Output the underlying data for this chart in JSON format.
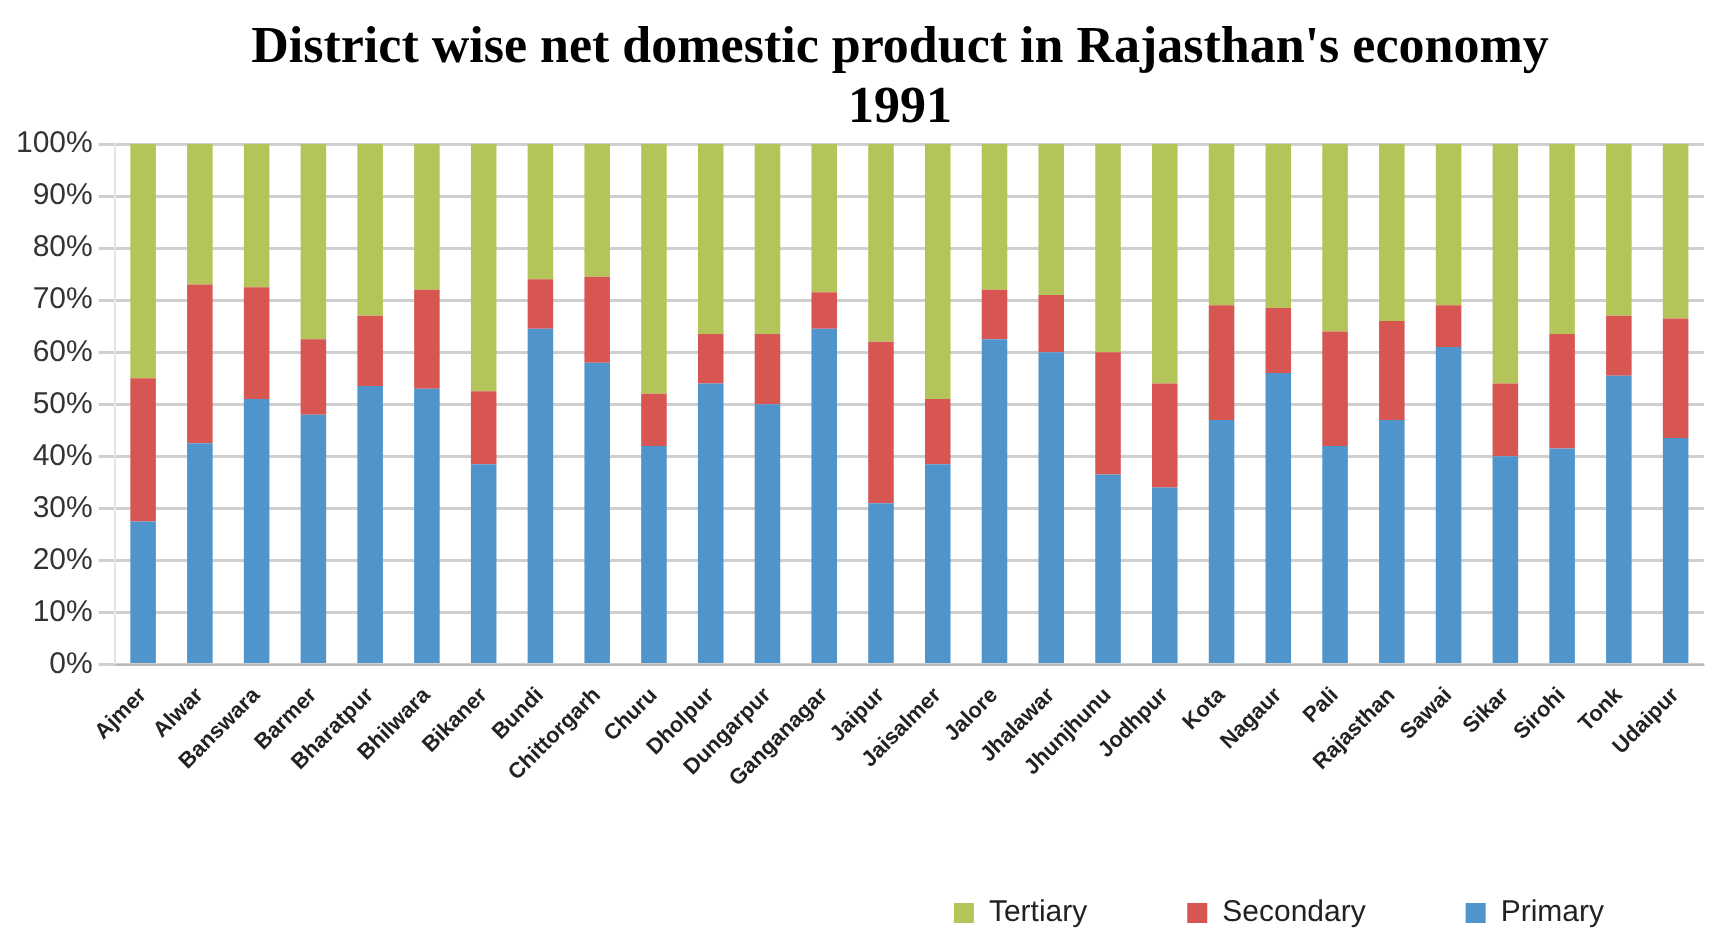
{
  "chart_data": {
    "type": "bar",
    "title": "District wise net domestic product in Rajasthan's economy 1991",
    "stacked": true,
    "categories": [
      "Ajmer",
      "Alwar",
      "Banswara",
      "Barmer",
      "Bharatpur",
      "Bhilwara",
      "Bikaner",
      "Bundi",
      "Chittorgarh",
      "Churu",
      "Dholpur",
      "Dungarpur",
      "Ganganagar",
      "Jaipur",
      "Jaisalmer",
      "Jalore",
      "Jhalawar",
      "Jhunjhunu",
      "Jodhpur",
      "Kota",
      "Nagaur",
      "Pali",
      "Rajasthan",
      "Sawai",
      "Sikar",
      "Sirohi",
      "Tonk",
      "Udaipur"
    ],
    "series": [
      {
        "name": "Primary",
        "color": "#4f94cb",
        "values": [
          27.5,
          42.5,
          51,
          48,
          53.5,
          53,
          38.5,
          64.5,
          58,
          42,
          54,
          50,
          64.5,
          31,
          38.5,
          62.5,
          60,
          36.5,
          34,
          47,
          56,
          42,
          47,
          61,
          40,
          41.5,
          55.5,
          43.5
        ]
      },
      {
        "name": "Secondary",
        "color": "#d85652",
        "values": [
          27.5,
          30.5,
          21.5,
          14.5,
          13.5,
          19,
          14,
          9.5,
          16.5,
          10,
          9.5,
          13.5,
          7,
          31,
          12.5,
          9.5,
          11,
          23.5,
          20,
          22,
          12.5,
          22,
          19,
          8,
          14,
          22,
          11.5,
          23
        ]
      },
      {
        "name": "Tertiary",
        "color": "#b5c459",
        "values": [
          45,
          27,
          27.5,
          37.5,
          33,
          28,
          47.5,
          26,
          25.5,
          48,
          36.5,
          36.5,
          28.5,
          38,
          49,
          28,
          29,
          40,
          46,
          31,
          31.5,
          36,
          34,
          31,
          46,
          36.5,
          33,
          33.5
        ]
      }
    ],
    "ylim": [
      0,
      100
    ],
    "yticks": [
      {
        "value": 0,
        "label": "0%"
      },
      {
        "value": 10,
        "label": "10%"
      },
      {
        "value": 20,
        "label": "20%"
      },
      {
        "value": 30,
        "label": "30%"
      },
      {
        "value": 40,
        "label": "40%"
      },
      {
        "value": 50,
        "label": "50%"
      },
      {
        "value": 60,
        "label": "60%"
      },
      {
        "value": 70,
        "label": "70%"
      },
      {
        "value": 80,
        "label": "80%"
      },
      {
        "value": 90,
        "label": "90%"
      },
      {
        "value": 100,
        "label": "100%"
      }
    ],
    "grid": "y",
    "legend": "bottom right"
  }
}
